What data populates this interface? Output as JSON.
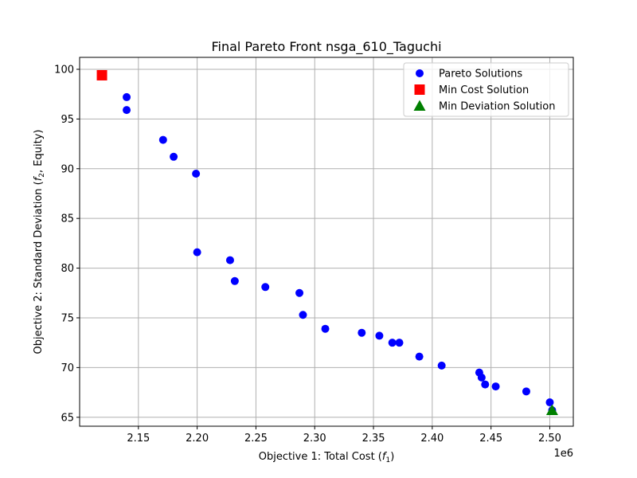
{
  "chart_data": {
    "type": "scatter",
    "title": "Final Pareto Front nsga_610_Taguchi",
    "xlabel": "Objective 1: Total Cost (",
    "xlabel_math": "f",
    "xlabel_sub": "1",
    "xlabel_end": ")",
    "ylabel": "Objective 2: Standard Deviation (",
    "ylabel_math": "f",
    "ylabel_sub": "2",
    "ylabel_end": ", Equity)",
    "x_offset_label": "1e6",
    "xlim": [
      2.1,
      2.52
    ],
    "ylim": [
      64.1,
      101.2
    ],
    "xticks": [
      2.15,
      2.2,
      2.25,
      2.3,
      2.35,
      2.4,
      2.45,
      2.5
    ],
    "xtick_labels": [
      "2.15",
      "2.20",
      "2.25",
      "2.30",
      "2.35",
      "2.40",
      "2.45",
      "2.50"
    ],
    "yticks": [
      65,
      70,
      75,
      80,
      85,
      90,
      95,
      100
    ],
    "ytick_labels": [
      "65",
      "70",
      "75",
      "80",
      "85",
      "90",
      "95",
      "100"
    ],
    "grid": true,
    "legend_position": "top-right",
    "series": [
      {
        "name": "Pareto Solutions",
        "marker": "circle",
        "color": "#0000ff",
        "x": [
          2.14,
          2.14,
          2.171,
          2.18,
          2.199,
          2.2,
          2.228,
          2.232,
          2.258,
          2.287,
          2.29,
          2.309,
          2.34,
          2.355,
          2.366,
          2.372,
          2.389,
          2.408,
          2.44,
          2.442,
          2.445,
          2.454,
          2.48,
          2.5,
          2.502
        ],
        "y": [
          97.2,
          95.9,
          92.9,
          91.2,
          89.5,
          81.6,
          80.8,
          78.7,
          78.1,
          77.5,
          75.3,
          73.9,
          73.5,
          73.2,
          72.5,
          72.5,
          71.1,
          70.2,
          69.5,
          69.0,
          68.3,
          68.1,
          67.6,
          66.5,
          65.7
        ]
      },
      {
        "name": "Min Cost Solution",
        "marker": "square",
        "color": "#ff0000",
        "x": [
          2.119
        ],
        "y": [
          99.4
        ]
      },
      {
        "name": "Min Deviation Solution",
        "marker": "triangle",
        "color": "#008000",
        "x": [
          2.502
        ],
        "y": [
          65.7
        ]
      }
    ]
  }
}
